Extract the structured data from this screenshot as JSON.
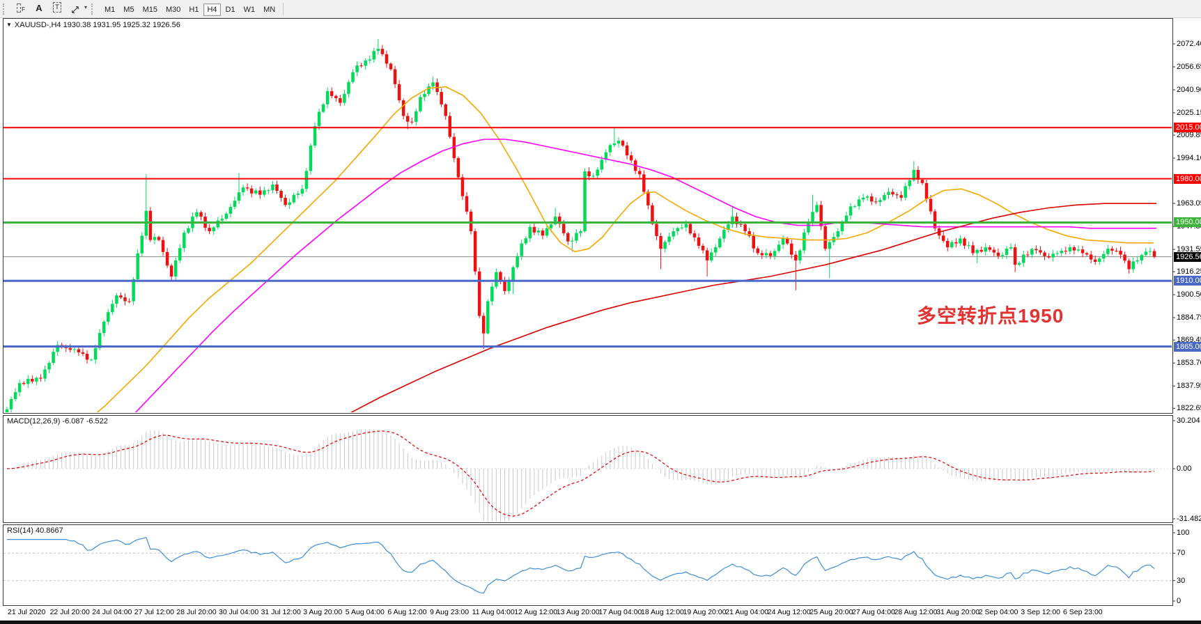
{
  "toolbar": {
    "tools": [
      {
        "name": "frame-tool",
        "glyph": "",
        "sub": "F"
      },
      {
        "name": "text-tool",
        "glyph": "A",
        "sub": ""
      },
      {
        "name": "label-tool",
        "glyph": "T",
        "sub": ""
      },
      {
        "name": "arrows-tool",
        "glyph": "",
        "sub": ""
      }
    ],
    "caret": "▾",
    "timeframes": [
      {
        "label": "M1",
        "active": false
      },
      {
        "label": "M5",
        "active": false
      },
      {
        "label": "M15",
        "active": false
      },
      {
        "label": "M30",
        "active": false
      },
      {
        "label": "H1",
        "active": false
      },
      {
        "label": "H4",
        "active": true
      },
      {
        "label": "D1",
        "active": false
      },
      {
        "label": "W1",
        "active": false
      },
      {
        "label": "MN",
        "active": false
      }
    ]
  },
  "chart": {
    "title": {
      "arrow": "▼",
      "text": "XAUUSD-,H4  1930.38 1931.95 1925.32 1926.56"
    },
    "annotation": {
      "text": "多空转折点1950",
      "color": "#e23333"
    }
  },
  "chart_data": {
    "type": "candlestick",
    "symbol": "XAUUSD",
    "timeframe": "H4",
    "ohlc_current": {
      "open": 1930.38,
      "high": 1931.95,
      "low": 1925.32,
      "close": 1926.56
    },
    "price_axis": {
      "ticks": [
        "2072.40",
        "2056.65",
        "2040.90",
        "2025.15",
        "2009.85",
        "1994.10",
        "1963.05",
        "1947.30",
        "1931.55",
        "1916.25",
        "1900.50",
        "1884.75",
        "1869.45",
        "1853.70",
        "1837.95",
        "1822.65"
      ],
      "tick_values": [
        2072.4,
        2056.65,
        2040.9,
        2025.15,
        2009.85,
        1994.1,
        1963.05,
        1947.3,
        1931.55,
        1916.25,
        1900.5,
        1884.75,
        1869.45,
        1853.7,
        1837.95,
        1822.65
      ]
    },
    "levels": [
      {
        "value": 2015.0,
        "label": "2015.00",
        "color": "#ff0000",
        "width": 2
      },
      {
        "value": 1980.0,
        "label": "1980.00",
        "color": "#ff0000",
        "width": 2
      },
      {
        "value": 1950.0,
        "label": "1950.00",
        "color": "#3cb43c",
        "width": 3
      },
      {
        "value": 1910.0,
        "label": "1910.00",
        "color": "#4a68c8",
        "width": 3
      },
      {
        "value": 1865.0,
        "label": "1865.00",
        "color": "#4a68c8",
        "width": 3
      }
    ],
    "current_price": {
      "value": 1926.56,
      "label": "1926.56",
      "line_color": "#8a8a8a",
      "tag_bg": "#000000"
    },
    "candle_colors": {
      "up": "#00dc5a",
      "down": "#ec1212"
    },
    "bars_total": 273,
    "close_anchors": [
      [
        0,
        1822
      ],
      [
        3,
        1840
      ],
      [
        8,
        1843
      ],
      [
        12,
        1866
      ],
      [
        17,
        1861
      ],
      [
        20,
        1856
      ],
      [
        23,
        1882
      ],
      [
        26,
        1900
      ],
      [
        29,
        1896
      ],
      [
        33,
        1958
      ],
      [
        34,
        1938
      ],
      [
        36,
        1938
      ],
      [
        39,
        1913
      ],
      [
        42,
        1943
      ],
      [
        45,
        1957
      ],
      [
        48,
        1944
      ],
      [
        52,
        1956
      ],
      [
        56,
        1974
      ],
      [
        60,
        1969
      ],
      [
        63,
        1976
      ],
      [
        66,
        1962
      ],
      [
        70,
        1973
      ],
      [
        73,
        2016
      ],
      [
        76,
        2040
      ],
      [
        79,
        2032
      ],
      [
        82,
        2053
      ],
      [
        85,
        2061
      ],
      [
        88,
        2069
      ],
      [
        91,
        2055
      ],
      [
        94,
        2023
      ],
      [
        96,
        2019
      ],
      [
        98,
        2036
      ],
      [
        101,
        2046
      ],
      [
        104,
        2023
      ],
      [
        107,
        1981
      ],
      [
        110,
        1944
      ],
      [
        112,
        1886
      ],
      [
        113,
        1874
      ],
      [
        114,
        1896
      ],
      [
        116,
        1916
      ],
      [
        118,
        1903
      ],
      [
        121,
        1927
      ],
      [
        124,
        1947
      ],
      [
        127,
        1941
      ],
      [
        130,
        1954
      ],
      [
        133,
        1937
      ],
      [
        136,
        1944
      ],
      [
        137,
        1985
      ],
      [
        139,
        1982
      ],
      [
        141,
        1993
      ],
      [
        143,
        2003
      ],
      [
        145,
        2006
      ],
      [
        147,
        1996
      ],
      [
        150,
        1983
      ],
      [
        153,
        1949
      ],
      [
        155,
        1932
      ],
      [
        158,
        1944
      ],
      [
        161,
        1949
      ],
      [
        164,
        1934
      ],
      [
        166,
        1924
      ],
      [
        169,
        1939
      ],
      [
        172,
        1954
      ],
      [
        175,
        1944
      ],
      [
        178,
        1929
      ],
      [
        181,
        1927
      ],
      [
        184,
        1939
      ],
      [
        187,
        1924
      ],
      [
        190,
        1950
      ],
      [
        192,
        1962
      ],
      [
        194,
        1932
      ],
      [
        197,
        1944
      ],
      [
        200,
        1961
      ],
      [
        203,
        1967
      ],
      [
        206,
        1964
      ],
      [
        209,
        1971
      ],
      [
        212,
        1967
      ],
      [
        215,
        1986
      ],
      [
        217,
        1977
      ],
      [
        220,
        1946
      ],
      [
        223,
        1933
      ],
      [
        226,
        1939
      ],
      [
        229,
        1929
      ],
      [
        232,
        1933
      ],
      [
        235,
        1927
      ],
      [
        238,
        1933
      ],
      [
        239,
        1921
      ],
      [
        241,
        1928
      ],
      [
        244,
        1931
      ],
      [
        247,
        1926
      ],
      [
        249,
        1929
      ],
      [
        252,
        1933
      ],
      [
        255,
        1929
      ],
      [
        258,
        1923
      ],
      [
        261,
        1932
      ],
      [
        264,
        1928
      ],
      [
        266,
        1918
      ],
      [
        268,
        1924
      ],
      [
        270,
        1930
      ],
      [
        271,
        1930.38
      ],
      [
        272,
        1926.56
      ]
    ],
    "wick_overrides": [
      [
        33,
        1983,
        null
      ],
      [
        55,
        1984,
        null
      ],
      [
        88,
        2075.8,
        null
      ],
      [
        95,
        null,
        2014
      ],
      [
        101,
        2050,
        null
      ],
      [
        113,
        null,
        1863.2
      ],
      [
        120,
        null,
        1901
      ],
      [
        130,
        1960,
        null
      ],
      [
        134,
        null,
        1930
      ],
      [
        144,
        2014.5,
        null
      ],
      [
        155,
        null,
        1918
      ],
      [
        166,
        null,
        1913
      ],
      [
        172,
        1961,
        null
      ],
      [
        187,
        null,
        1903.5
      ],
      [
        191,
        1969,
        null
      ],
      [
        195,
        null,
        1912
      ],
      [
        215,
        1992,
        null
      ],
      [
        230,
        null,
        1922
      ],
      [
        239,
        null,
        1916
      ],
      [
        266,
        null,
        1915
      ]
    ],
    "moving_averages": [
      {
        "name": "ma-fast",
        "color": "#f5a800",
        "points": [
          [
            55,
            1788
          ],
          [
            90,
            1800
          ],
          [
            120,
            1812
          ],
          [
            150,
            1824
          ],
          [
            180,
            1838
          ],
          [
            210,
            1852
          ],
          [
            240,
            1868
          ],
          [
            270,
            1884
          ],
          [
            300,
            1898
          ],
          [
            330,
            1910
          ],
          [
            360,
            1922
          ],
          [
            390,
            1936
          ],
          [
            420,
            1950
          ],
          [
            450,
            1964
          ],
          [
            480,
            1978
          ],
          [
            510,
            1994
          ],
          [
            540,
            2010
          ],
          [
            565,
            2024
          ],
          [
            590,
            2035
          ],
          [
            615,
            2042
          ],
          [
            640,
            2043
          ],
          [
            665,
            2037
          ],
          [
            690,
            2025
          ],
          [
            715,
            2008
          ],
          [
            740,
            1988
          ],
          [
            765,
            1966
          ],
          [
            785,
            1948
          ],
          [
            805,
            1936
          ],
          [
            825,
            1930
          ],
          [
            845,
            1932
          ],
          [
            865,
            1940
          ],
          [
            885,
            1952
          ],
          [
            905,
            1963
          ],
          [
            925,
            1970
          ],
          [
            940,
            1971
          ],
          [
            960,
            1965
          ],
          [
            985,
            1958
          ],
          [
            1010,
            1952
          ],
          [
            1040,
            1946
          ],
          [
            1070,
            1942
          ],
          [
            1100,
            1940
          ],
          [
            1130,
            1939
          ],
          [
            1160,
            1938
          ],
          [
            1190,
            1938
          ],
          [
            1215,
            1939
          ],
          [
            1245,
            1943
          ],
          [
            1275,
            1950
          ],
          [
            1305,
            1958
          ],
          [
            1330,
            1966
          ],
          [
            1355,
            1972
          ],
          [
            1380,
            1973
          ],
          [
            1405,
            1969
          ],
          [
            1430,
            1963
          ],
          [
            1455,
            1956
          ],
          [
            1480,
            1950
          ],
          [
            1505,
            1945
          ],
          [
            1530,
            1941
          ],
          [
            1560,
            1938
          ],
          [
            1590,
            1937
          ],
          [
            1620,
            1936
          ],
          [
            1656,
            1936
          ]
        ]
      },
      {
        "name": "ma-mid",
        "color": "#ff00ff",
        "points": [
          [
            125,
            1786
          ],
          [
            155,
            1800
          ],
          [
            185,
            1815
          ],
          [
            215,
            1830
          ],
          [
            245,
            1845
          ],
          [
            275,
            1860
          ],
          [
            305,
            1875
          ],
          [
            335,
            1889
          ],
          [
            365,
            1902
          ],
          [
            395,
            1915
          ],
          [
            425,
            1928
          ],
          [
            455,
            1940
          ],
          [
            485,
            1952
          ],
          [
            515,
            1963
          ],
          [
            545,
            1974
          ],
          [
            575,
            1984
          ],
          [
            605,
            1992
          ],
          [
            635,
            1999
          ],
          [
            665,
            2004
          ],
          [
            695,
            2007
          ],
          [
            725,
            2007
          ],
          [
            755,
            2005
          ],
          [
            785,
            2002
          ],
          [
            815,
            1999
          ],
          [
            845,
            1996
          ],
          [
            875,
            1993
          ],
          [
            905,
            1990
          ],
          [
            935,
            1986
          ],
          [
            965,
            1981
          ],
          [
            995,
            1974
          ],
          [
            1025,
            1967
          ],
          [
            1055,
            1960
          ],
          [
            1085,
            1954
          ],
          [
            1115,
            1950
          ],
          [
            1145,
            1948
          ],
          [
            1175,
            1948
          ],
          [
            1205,
            1950
          ],
          [
            1235,
            1950
          ],
          [
            1265,
            1949
          ],
          [
            1295,
            1948
          ],
          [
            1325,
            1947
          ],
          [
            1355,
            1947
          ],
          [
            1385,
            1947
          ],
          [
            1415,
            1947
          ],
          [
            1445,
            1947
          ],
          [
            1475,
            1947
          ],
          [
            1505,
            1947
          ],
          [
            1535,
            1947
          ],
          [
            1565,
            1946
          ],
          [
            1595,
            1946
          ],
          [
            1625,
            1946
          ],
          [
            1660,
            1946
          ]
        ]
      },
      {
        "name": "ma-slow",
        "color": "#dd0000",
        "points": [
          [
            425,
            1799
          ],
          [
            465,
            1810
          ],
          [
            505,
            1820
          ],
          [
            545,
            1830
          ],
          [
            585,
            1839
          ],
          [
            625,
            1848
          ],
          [
            665,
            1856
          ],
          [
            705,
            1864
          ],
          [
            745,
            1871
          ],
          [
            785,
            1878
          ],
          [
            825,
            1884
          ],
          [
            865,
            1890
          ],
          [
            905,
            1895
          ],
          [
            945,
            1899
          ],
          [
            985,
            1903
          ],
          [
            1025,
            1907
          ],
          [
            1065,
            1910
          ],
          [
            1105,
            1913
          ],
          [
            1145,
            1917
          ],
          [
            1185,
            1921
          ],
          [
            1225,
            1926
          ],
          [
            1265,
            1931
          ],
          [
            1305,
            1937
          ],
          [
            1345,
            1943
          ],
          [
            1385,
            1948
          ],
          [
            1425,
            1953
          ],
          [
            1465,
            1957
          ],
          [
            1505,
            1960
          ],
          [
            1545,
            1962
          ],
          [
            1585,
            1963
          ],
          [
            1625,
            1963
          ],
          [
            1660,
            1963
          ]
        ]
      }
    ],
    "macd": {
      "label": "MACD(12,26,9) -6.087 -6.522",
      "params": [
        12,
        26,
        9
      ],
      "value": -6.087,
      "signal": -6.522,
      "ticks": [
        "30.204",
        "0.00",
        "-31.482"
      ],
      "tick_values": [
        30.204,
        0,
        -31.482
      ],
      "histogram_color": "#c9c9c9",
      "signal_color": "#e00000"
    },
    "rsi": {
      "label": "RSI(14) 40.8667",
      "period": 14,
      "value": 40.8667,
      "ticks": [
        "100",
        "70",
        "30",
        "0"
      ],
      "tick_values": [
        100,
        70,
        30,
        0
      ],
      "level_lines": [
        70,
        30
      ],
      "line_color": "#3e8fd8",
      "grid_color": "#c8c8c8"
    },
    "time_axis": {
      "labels": [
        "21 Jul 2020",
        "22 Jul 20:00",
        "24 Jul 04:00",
        "27 Jul 12:00",
        "28 Jul 20:00",
        "30 Jul 04:00",
        "31 Jul 12:00",
        "3 Aug 20:00",
        "5 Aug 04:00",
        "6 Aug 12:00",
        "9 Aug 23:00",
        "11 Aug 04:00",
        "12 Aug 12:00",
        "13 Aug 20:00",
        "17 Aug 04:00",
        "18 Aug 12:00",
        "19 Aug 20:00",
        "21 Aug 04:00",
        "24 Aug 12:00",
        "25 Aug 20:00",
        "27 Aug 04:00",
        "28 Aug 12:00",
        "31 Aug 20:00",
        "2 Sep 04:00",
        "3 Sep 12:00",
        "6 Sep 23:00"
      ]
    }
  }
}
